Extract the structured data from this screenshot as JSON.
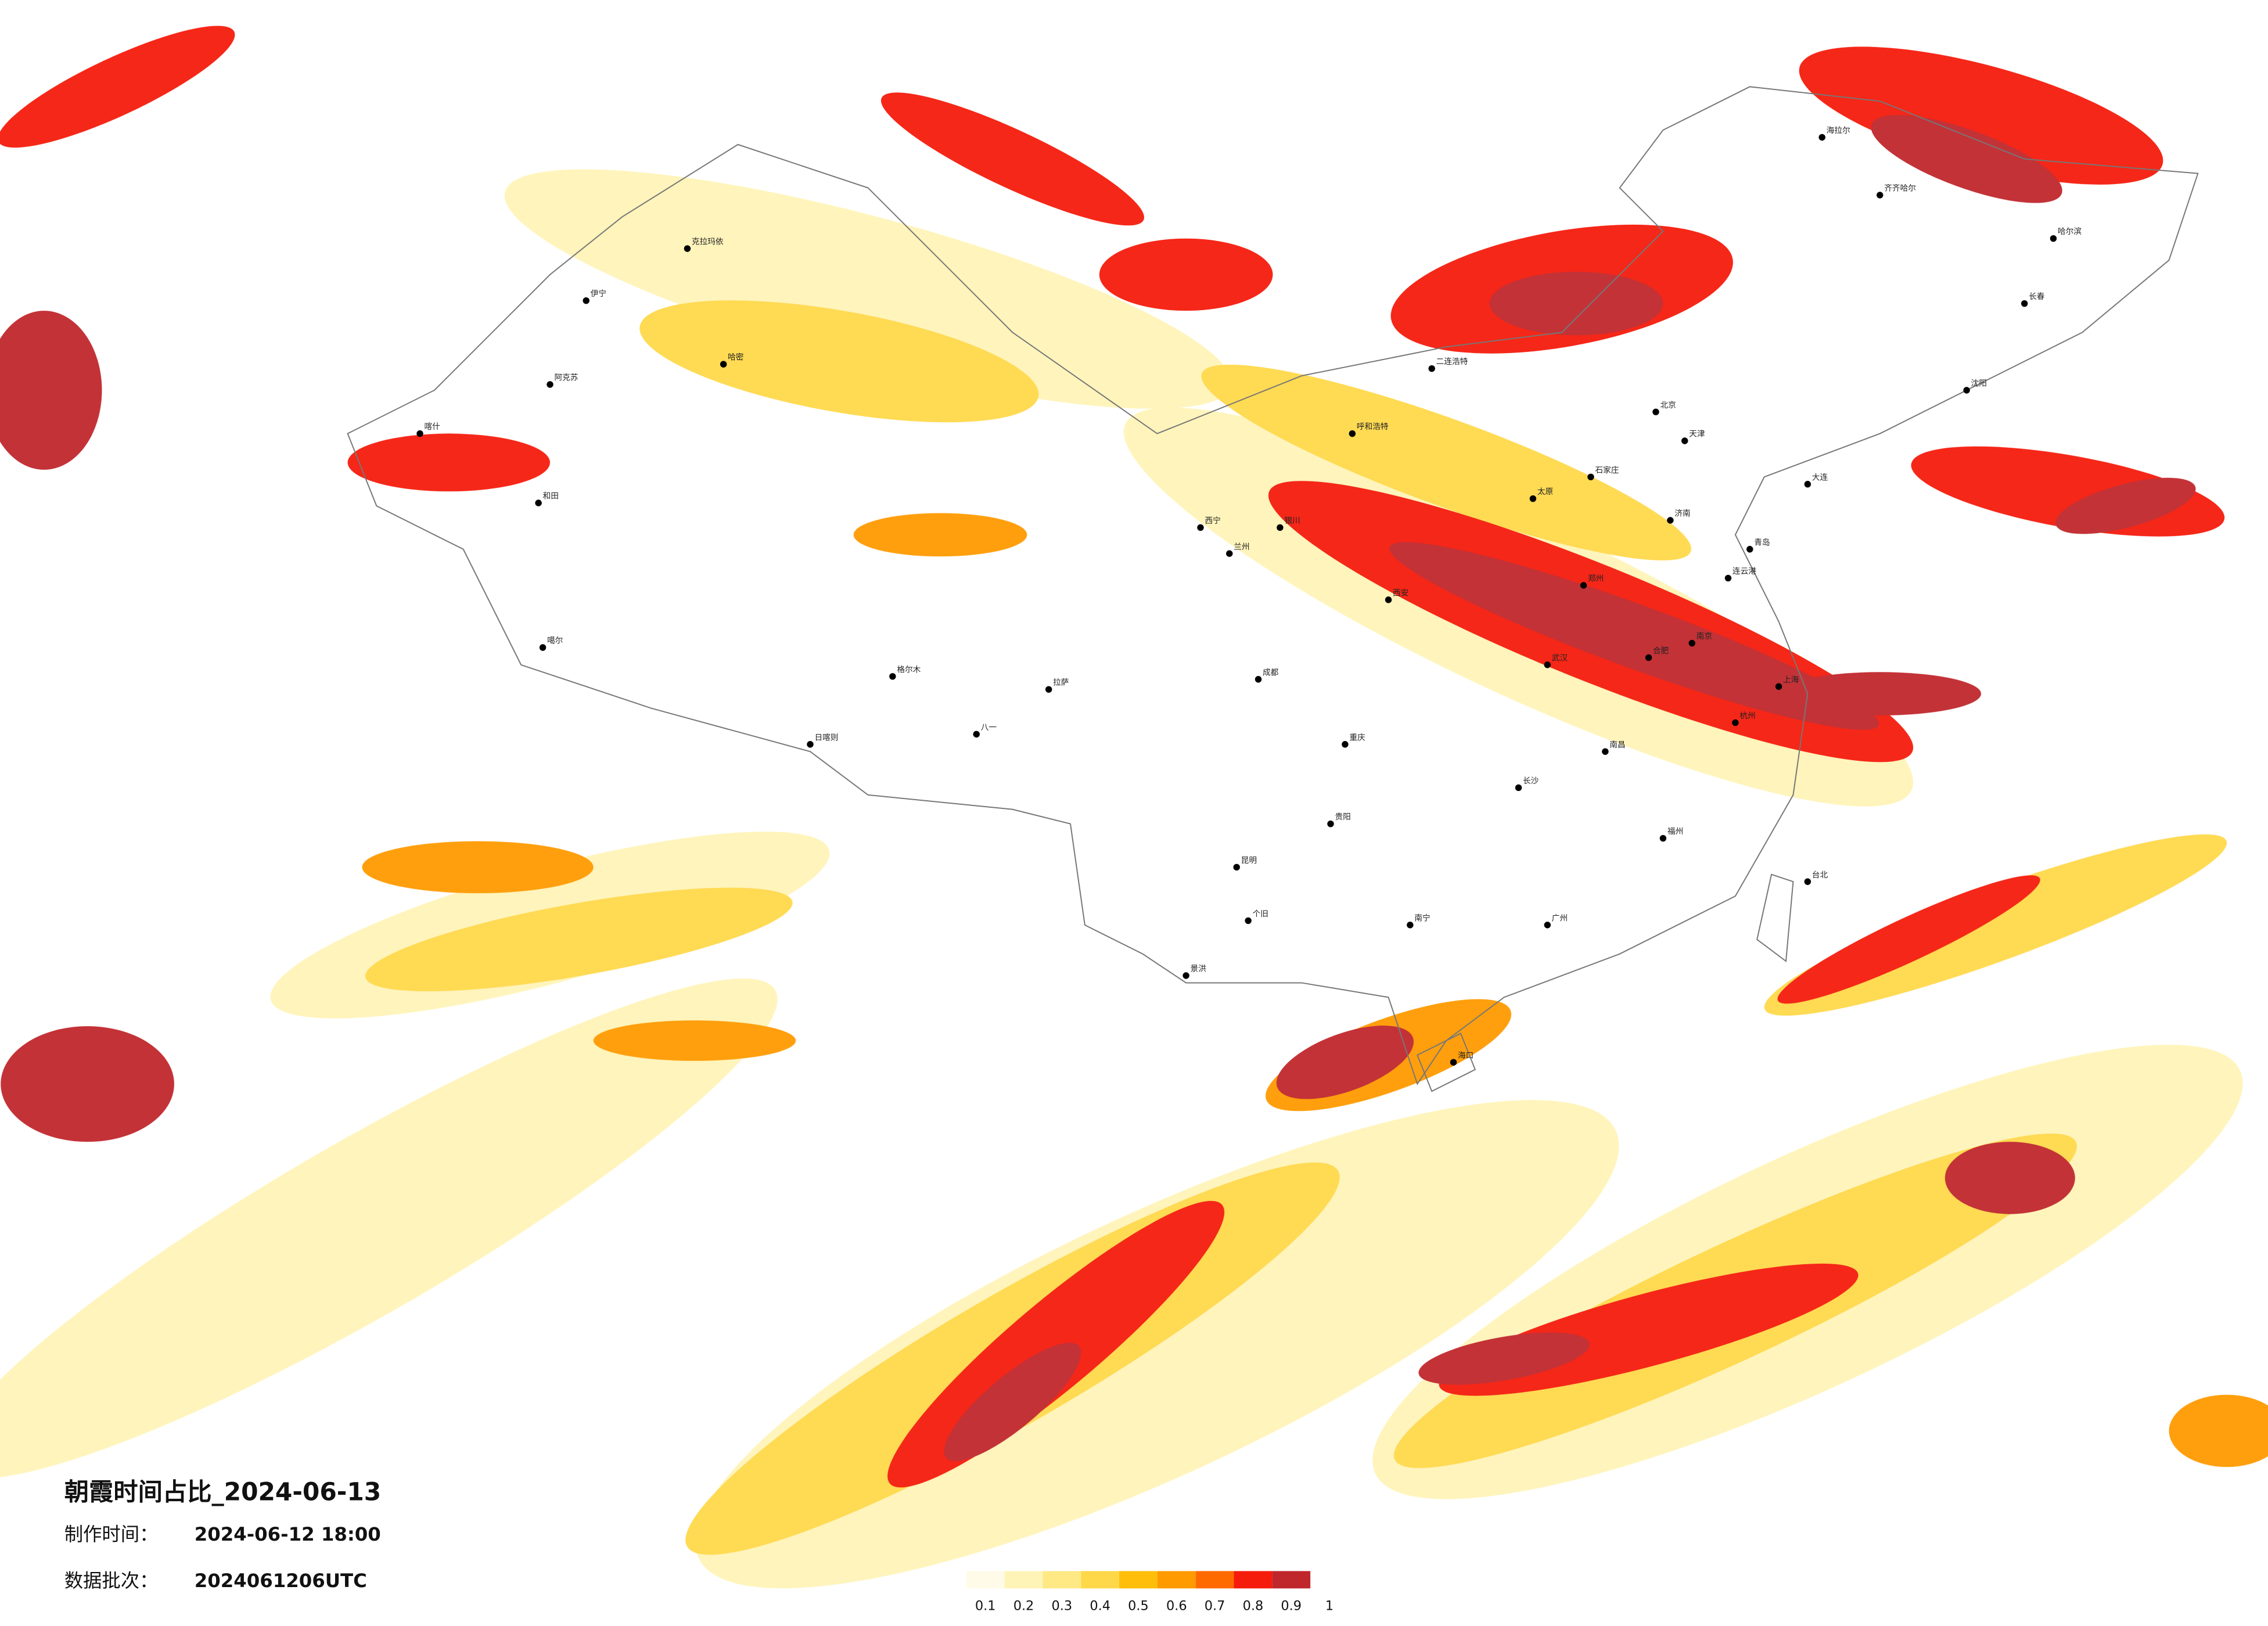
{
  "header": {
    "title": "朝霞时间占比_2024-06-13",
    "make_time_label": "制作时间：",
    "make_time": "2024-06-12 18:00",
    "batch_label": "数据批次：",
    "batch": "2024061206UTC"
  },
  "colorbar": {
    "ticks": [
      0.1,
      0.2,
      0.3,
      0.4,
      0.5,
      0.6,
      0.7,
      0.8,
      0.9,
      1
    ],
    "colors": [
      "#fffbe8",
      "#fff4b8",
      "#ffe985",
      "#ffd84a",
      "#ffbe0a",
      "#ff9a00",
      "#ff6a00",
      "#f51c0c",
      "#c0272d"
    ]
  },
  "cities": [
    "克拉玛依",
    "伊宁",
    "阿克苏",
    "喀什",
    "和田",
    "哈密",
    "格尔木",
    "噶尔",
    "拉萨",
    "日喀则",
    "八一",
    "西宁",
    "兰州",
    "银川",
    "呼和浩特",
    "二连浩特",
    "海拉尔",
    "齐齐哈尔",
    "哈尔滨",
    "长春",
    "沈阳",
    "北京",
    "天津",
    "石家庄",
    "太原",
    "济南",
    "郑州",
    "西安",
    "武汉",
    "南京",
    "上海",
    "杭州",
    "合肥",
    "南昌",
    "长沙",
    "福州",
    "成都",
    "重庆",
    "贵阳",
    "昆明",
    "南宁",
    "广州",
    "台北",
    "海口",
    "大连",
    "青岛",
    "连云港",
    "景洪",
    "个旧"
  ]
}
